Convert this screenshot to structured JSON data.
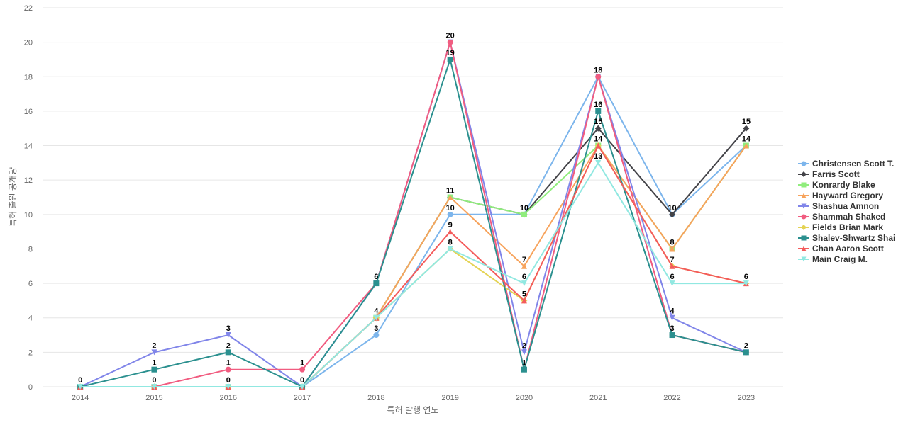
{
  "chart_data": {
    "type": "line",
    "title": "",
    "xlabel": "특허 발행 연도",
    "ylabel": "특허 출원 공개량",
    "ylim": [
      0,
      22
    ],
    "yticks": [
      0,
      2,
      4,
      6,
      8,
      10,
      12,
      14,
      16,
      18,
      20,
      22
    ],
    "categories": [
      "2014",
      "2015",
      "2016",
      "2017",
      "2018",
      "2019",
      "2020",
      "2021",
      "2022",
      "2023"
    ],
    "legend_position": "right",
    "grid": true,
    "series": [
      {
        "name": "Christensen Scott T.",
        "color": "#7cb5ec",
        "marker": "circle",
        "values": [
          0,
          0,
          0,
          0,
          3,
          10,
          10,
          18,
          10,
          14
        ]
      },
      {
        "name": "Farris Scott",
        "color": "#434348",
        "marker": "diamond",
        "values": [
          0,
          0,
          0,
          0,
          4,
          11,
          10,
          15,
          10,
          15
        ]
      },
      {
        "name": "Konrardy Blake",
        "color": "#90ed7d",
        "marker": "square",
        "values": [
          0,
          0,
          0,
          0,
          4,
          11,
          10,
          14,
          8,
          14
        ]
      },
      {
        "name": "Hayward Gregory",
        "color": "#f7a35c",
        "marker": "triangle",
        "values": [
          0,
          0,
          0,
          0,
          4,
          11,
          7,
          14,
          8,
          14
        ]
      },
      {
        "name": "Shashua Amnon",
        "color": "#8085e9",
        "marker": "triangle-down",
        "values": [
          0,
          2,
          3,
          0,
          6,
          20,
          2,
          18,
          4,
          2
        ]
      },
      {
        "name": "Shammah Shaked",
        "color": "#f15c80",
        "marker": "circle",
        "values": [
          0,
          0,
          1,
          1,
          6,
          20,
          1,
          18,
          3,
          2
        ]
      },
      {
        "name": "Fields Brian Mark",
        "color": "#e4d354",
        "marker": "diamond",
        "values": [
          0,
          0,
          0,
          0,
          4,
          8,
          5,
          14,
          7,
          6
        ]
      },
      {
        "name": "Shalev-Shwartz Shai",
        "color": "#2b908f",
        "marker": "square",
        "values": [
          0,
          1,
          2,
          0,
          6,
          19,
          1,
          16,
          3,
          2
        ]
      },
      {
        "name": "Chan Aaron Scott",
        "color": "#f45b5b",
        "marker": "triangle",
        "values": [
          0,
          0,
          0,
          0,
          4,
          9,
          5,
          14,
          7,
          6
        ]
      },
      {
        "name": "Main Craig M.",
        "color": "#91e8e1",
        "marker": "triangle-down",
        "values": [
          0,
          0,
          0,
          0,
          4,
          8,
          6,
          13,
          6,
          6
        ]
      }
    ],
    "data_labels": [
      {
        "category": "2014",
        "value": 0,
        "text": "0"
      },
      {
        "category": "2015",
        "value": 2,
        "text": "2"
      },
      {
        "category": "2015",
        "value": 1,
        "text": "1"
      },
      {
        "category": "2015",
        "value": 0,
        "text": "0"
      },
      {
        "category": "2016",
        "value": 3,
        "text": "3"
      },
      {
        "category": "2016",
        "value": 2,
        "text": "2"
      },
      {
        "category": "2016",
        "value": 1,
        "text": "1"
      },
      {
        "category": "2016",
        "value": 0,
        "text": "0"
      },
      {
        "category": "2017",
        "value": 1,
        "text": "1"
      },
      {
        "category": "2017",
        "value": 0,
        "text": "0"
      },
      {
        "category": "2018",
        "value": 6,
        "text": "6"
      },
      {
        "category": "2018",
        "value": 4,
        "text": "4"
      },
      {
        "category": "2018",
        "value": 3,
        "text": "3"
      },
      {
        "category": "2019",
        "value": 20,
        "text": "20"
      },
      {
        "category": "2019",
        "value": 19,
        "text": "19"
      },
      {
        "category": "2019",
        "value": 11,
        "text": "11"
      },
      {
        "category": "2019",
        "value": 10,
        "text": "10"
      },
      {
        "category": "2019",
        "value": 9,
        "text": "9"
      },
      {
        "category": "2019",
        "value": 8,
        "text": "8"
      },
      {
        "category": "2020",
        "value": 10,
        "text": "10"
      },
      {
        "category": "2020",
        "value": 7,
        "text": "7"
      },
      {
        "category": "2020",
        "value": 6,
        "text": "6"
      },
      {
        "category": "2020",
        "value": 5,
        "text": "5"
      },
      {
        "category": "2020",
        "value": 2,
        "text": "2"
      },
      {
        "category": "2020",
        "value": 1,
        "text": "1"
      },
      {
        "category": "2021",
        "value": 18,
        "text": "18"
      },
      {
        "category": "2021",
        "value": 16,
        "text": "16"
      },
      {
        "category": "2021",
        "value": 15,
        "text": "15"
      },
      {
        "category": "2021",
        "value": 14,
        "text": "14"
      },
      {
        "category": "2021",
        "value": 13,
        "text": "13"
      },
      {
        "category": "2022",
        "value": 10,
        "text": "10"
      },
      {
        "category": "2022",
        "value": 8,
        "text": "8"
      },
      {
        "category": "2022",
        "value": 7,
        "text": "7"
      },
      {
        "category": "2022",
        "value": 6,
        "text": "6"
      },
      {
        "category": "2022",
        "value": 4,
        "text": "4"
      },
      {
        "category": "2022",
        "value": 3,
        "text": "3"
      },
      {
        "category": "2023",
        "value": 15,
        "text": "15"
      },
      {
        "category": "2023",
        "value": 14,
        "text": "14"
      },
      {
        "category": "2023",
        "value": 6,
        "text": "6"
      },
      {
        "category": "2023",
        "value": 2,
        "text": "2"
      }
    ]
  }
}
